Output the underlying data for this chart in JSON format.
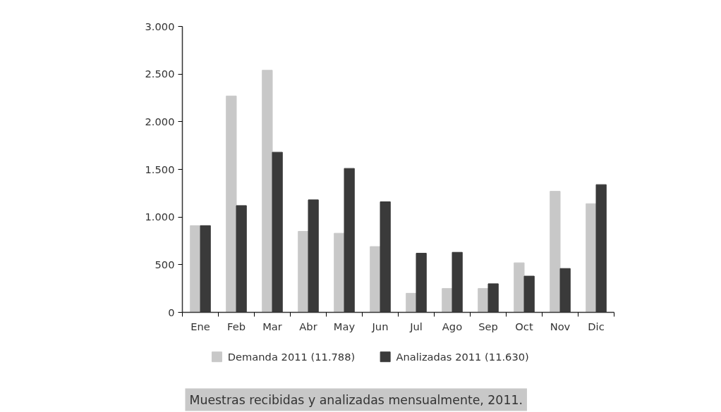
{
  "chart_data": {
    "type": "bar",
    "annotations": [
      "Muestras recibidas y analizadas mensualmente, 2011."
    ],
    "categories": [
      "Ene",
      "Feb",
      "Mar",
      "Abr",
      "May",
      "Jun",
      "Jul",
      "Ago",
      "Sep",
      "Oct",
      "Nov",
      "Dic"
    ],
    "series": [
      {
        "name": "Demanda 2011 (11.788)",
        "color": "#c8c8c8",
        "values": [
          910,
          2270,
          2540,
          850,
          830,
          690,
          200,
          250,
          250,
          520,
          1270,
          1140
        ]
      },
      {
        "name": "Analizadas 2011 (11.630)",
        "color": "#3a3a3a",
        "values": [
          910,
          1120,
          1680,
          1180,
          1510,
          1160,
          620,
          630,
          300,
          380,
          460,
          1340
        ]
      }
    ],
    "ylim": [
      0,
      3000
    ],
    "yticks": [
      0,
      500,
      {
        "value": 1000,
        "label": "1.000"
      },
      {
        "value": 1500,
        "label": "1.500"
      },
      {
        "value": 2000,
        "label": "2.000"
      },
      {
        "value": 2500,
        "label": "2.500"
      },
      {
        "value": 3000,
        "label": "3.000"
      }
    ],
    "grid": false,
    "legend": "bottom"
  }
}
